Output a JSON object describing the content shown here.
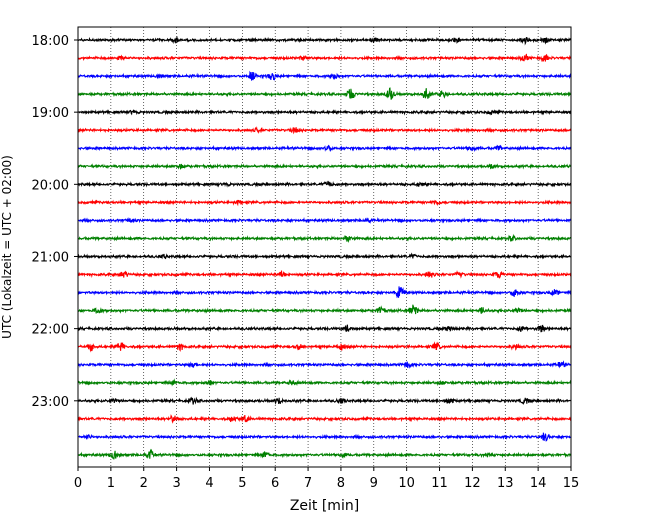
{
  "chart_data": {
    "type": "line",
    "title": "",
    "xlabel": "Zeit  [min]",
    "ylabel": "UTC (Lokalzeit = UTC + 02:00)",
    "xlim": [
      0,
      15
    ],
    "x_ticks": [
      0,
      1,
      2,
      3,
      4,
      5,
      6,
      7,
      8,
      9,
      10,
      11,
      12,
      13,
      14,
      15
    ],
    "x_tick_labels": [
      "0",
      "1",
      "2",
      "3",
      "4",
      "5",
      "6",
      "7",
      "8",
      "9",
      "10",
      "11",
      "12",
      "13",
      "14",
      "15"
    ],
    "y_tick_labels": [
      "18:00",
      "19:00",
      "20:00",
      "21:00",
      "22:00",
      "23:00"
    ],
    "y_tick_traces": [
      0,
      4,
      8,
      12,
      16,
      20
    ],
    "grid": "vertical dotted",
    "color_cycle": [
      "#000000",
      "#ff0000",
      "#0000ff",
      "#008000"
    ],
    "traces": [
      {
        "start": "18:00",
        "color": "#000000",
        "events": [
          [
            3.0,
            0.7
          ],
          [
            9.0,
            0.7
          ],
          [
            11.5,
            0.6
          ],
          [
            13.6,
            0.8
          ],
          [
            14.2,
            0.8
          ]
        ]
      },
      {
        "start": "18:15",
        "color": "#ff0000",
        "events": [
          [
            1.3,
            0.6
          ],
          [
            6.9,
            0.7
          ],
          [
            13.6,
            0.9
          ],
          [
            14.2,
            0.9
          ]
        ]
      },
      {
        "start": "18:30",
        "color": "#0000ff",
        "events": [
          [
            2.5,
            0.6
          ],
          [
            5.3,
            1.2
          ],
          [
            5.9,
            1.2
          ],
          [
            7.8,
            0.8
          ]
        ]
      },
      {
        "start": "18:45",
        "color": "#008000",
        "events": [
          [
            8.3,
            1.6
          ],
          [
            9.5,
            1.7
          ],
          [
            10.6,
            1.7
          ],
          [
            11.1,
            1.0
          ]
        ]
      },
      {
        "start": "19:00",
        "color": "#000000",
        "events": [
          [
            1.7,
            0.6
          ],
          [
            12.6,
            0.6
          ]
        ]
      },
      {
        "start": "19:15",
        "color": "#ff0000",
        "events": [
          [
            5.5,
            0.6
          ],
          [
            6.6,
            0.7
          ]
        ]
      },
      {
        "start": "19:30",
        "color": "#0000ff",
        "events": [
          [
            7.6,
            0.7
          ],
          [
            12.0,
            0.7
          ],
          [
            12.8,
            0.6
          ]
        ]
      },
      {
        "start": "19:45",
        "color": "#008000",
        "events": [
          [
            3.1,
            0.5
          ],
          [
            12.6,
            0.6
          ]
        ]
      },
      {
        "start": "20:00",
        "color": "#000000",
        "events": [
          [
            4.5,
            0.5
          ],
          [
            7.6,
            0.9
          ],
          [
            10.4,
            0.5
          ]
        ]
      },
      {
        "start": "20:15",
        "color": "#ff0000",
        "events": [
          [
            4.9,
            0.5
          ],
          [
            10.9,
            0.5
          ]
        ]
      },
      {
        "start": "20:30",
        "color": "#0000ff",
        "events": [
          [
            1.6,
            0.5
          ],
          [
            8.8,
            0.5
          ]
        ]
      },
      {
        "start": "20:45",
        "color": "#008000",
        "events": [
          [
            8.2,
            0.8
          ],
          [
            13.2,
            0.6
          ]
        ]
      },
      {
        "start": "21:00",
        "color": "#000000",
        "events": [
          [
            2.6,
            0.5
          ],
          [
            10.2,
            0.5
          ]
        ]
      },
      {
        "start": "21:15",
        "color": "#ff0000",
        "events": [
          [
            1.4,
            0.9
          ],
          [
            6.2,
            1.0
          ],
          [
            10.7,
            0.9
          ],
          [
            11.6,
            0.8
          ],
          [
            12.8,
            1.0
          ]
        ]
      },
      {
        "start": "21:30",
        "color": "#0000ff",
        "events": [
          [
            9.8,
            1.8
          ],
          [
            13.3,
            1.2
          ],
          [
            14.5,
            0.8
          ]
        ]
      },
      {
        "start": "21:45",
        "color": "#008000",
        "events": [
          [
            0.6,
            0.8
          ],
          [
            9.2,
            1.0
          ],
          [
            10.2,
            1.8
          ],
          [
            12.3,
            0.8
          ],
          [
            13.4,
            0.9
          ]
        ]
      },
      {
        "start": "22:00",
        "color": "#000000",
        "events": [
          [
            8.2,
            1.0
          ],
          [
            11.3,
            0.7
          ],
          [
            13.5,
            0.7
          ],
          [
            14.1,
            1.1
          ]
        ]
      },
      {
        "start": "22:15",
        "color": "#ff0000",
        "events": [
          [
            0.4,
            1.0
          ],
          [
            1.3,
            1.2
          ],
          [
            3.1,
            0.9
          ],
          [
            6.7,
            0.7
          ],
          [
            8.0,
            0.8
          ],
          [
            10.9,
            1.0
          ],
          [
            13.3,
            0.7
          ]
        ]
      },
      {
        "start": "22:30",
        "color": "#0000ff",
        "events": [
          [
            3.5,
            0.6
          ],
          [
            10.0,
            1.0
          ],
          [
            14.7,
            0.8
          ]
        ]
      },
      {
        "start": "22:45",
        "color": "#008000",
        "events": [
          [
            2.9,
            0.6
          ],
          [
            4.0,
            0.6
          ],
          [
            6.5,
            0.6
          ],
          [
            11.1,
            0.6
          ]
        ]
      },
      {
        "start": "23:00",
        "color": "#000000",
        "events": [
          [
            1.1,
            0.8
          ],
          [
            3.5,
            0.8
          ],
          [
            6.1,
            0.8
          ],
          [
            8.0,
            0.8
          ],
          [
            11.3,
            0.8
          ],
          [
            13.6,
            0.9
          ]
        ]
      },
      {
        "start": "23:15",
        "color": "#ff0000",
        "events": [
          [
            2.9,
            1.0
          ],
          [
            4.7,
            0.9
          ],
          [
            5.1,
            1.0
          ]
        ]
      },
      {
        "start": "23:30",
        "color": "#0000ff",
        "events": [
          [
            0.3,
            0.5
          ],
          [
            14.2,
            1.1
          ]
        ]
      },
      {
        "start": "23:45",
        "color": "#008000",
        "events": [
          [
            1.1,
            1.2
          ],
          [
            2.2,
            1.2
          ],
          [
            5.7,
            0.9
          ],
          [
            8.1,
            0.7
          ],
          [
            12.5,
            0.6
          ]
        ]
      }
    ]
  }
}
